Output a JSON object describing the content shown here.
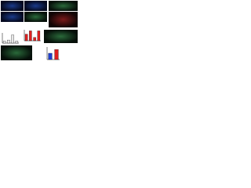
{
  "chart_data": [
    {
      "type": "bar",
      "categories": [
        null,
        null,
        null,
        null
      ],
      "values": [
        2,
        3,
        8,
        2
      ],
      "color": "#e8e8e8",
      "ylim": [
        0,
        10
      ]
    },
    {
      "type": "bar",
      "categories": [
        null,
        null,
        null,
        null
      ],
      "values": [
        6,
        9,
        3,
        9
      ],
      "color": "#e02020",
      "ylim": [
        0,
        10
      ]
    },
    {
      "type": "bar",
      "categories": [
        null,
        null
      ],
      "series": [
        {
          "color": "#2040d0",
          "values": [
            5,
            null
          ]
        },
        {
          "color": "#e02020",
          "values": [
            null,
            8
          ]
        }
      ],
      "ylim": [
        0,
        10
      ]
    }
  ]
}
